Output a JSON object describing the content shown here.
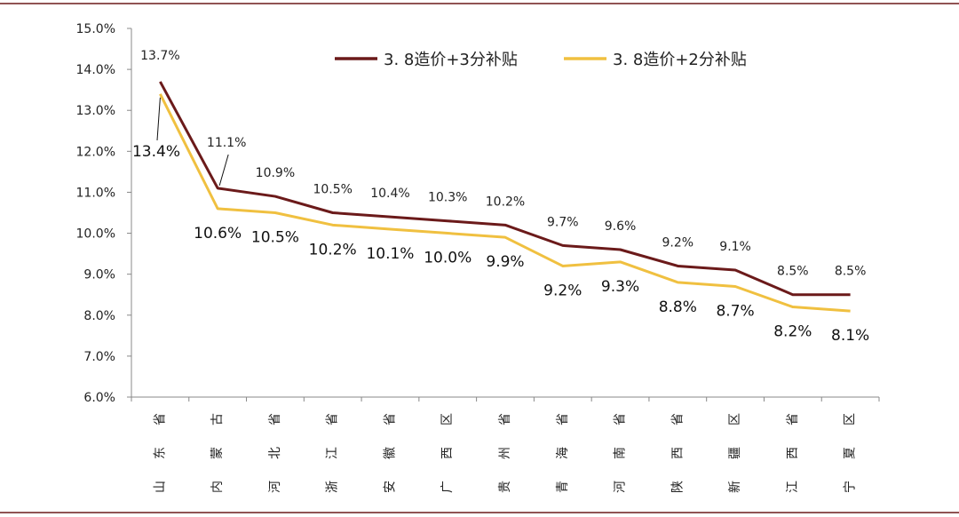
{
  "chart_data": {
    "type": "line",
    "categories": [
      "山东省",
      "内蒙古",
      "河北省",
      "浙江省",
      "安徽省",
      "广西区",
      "贵州省",
      "青海省",
      "河南省",
      "陕西省",
      "新疆区",
      "江西省",
      "宁夏区"
    ],
    "series": [
      {
        "name": "3.8造价+3分补贴",
        "color": "#6b1a1a",
        "values": [
          13.7,
          11.1,
          10.9,
          10.5,
          10.4,
          10.3,
          10.2,
          9.7,
          9.6,
          9.2,
          9.1,
          8.5,
          8.5
        ],
        "labels": [
          "13.7%",
          "11.1%",
          "10.9%",
          "10.5%",
          "10.4%",
          "10.3%",
          "10.2%",
          "9.7%",
          "9.6%",
          "9.2%",
          "9.1%",
          "8.5%",
          "8.5%"
        ]
      },
      {
        "name": "3.8造价+2分补贴",
        "color": "#f0c040",
        "values": [
          13.4,
          10.6,
          10.5,
          10.2,
          10.1,
          10.0,
          9.9,
          9.2,
          9.3,
          8.8,
          8.7,
          8.2,
          8.1
        ],
        "labels": [
          "13.4%",
          "10.6%",
          "10.5%",
          "10.2%",
          "10.1%",
          "10.0%",
          "9.9%",
          "9.2%",
          "9.3%",
          "8.8%",
          "8.7%",
          "8.2%",
          "8.1%"
        ]
      }
    ],
    "legend_labels": [
      "3. 8造价+3分补贴",
      "3. 8造价+2分补贴"
    ],
    "ylim": [
      6.0,
      15.0
    ],
    "yticks": [
      "6.0%",
      "7.0%",
      "8.0%",
      "9.0%",
      "10.0%",
      "11.0%",
      "12.0%",
      "13.0%",
      "14.0%",
      "15.0%"
    ],
    "legend_position": "top-right",
    "grid": false,
    "frame_color": "#6b1a1a"
  }
}
